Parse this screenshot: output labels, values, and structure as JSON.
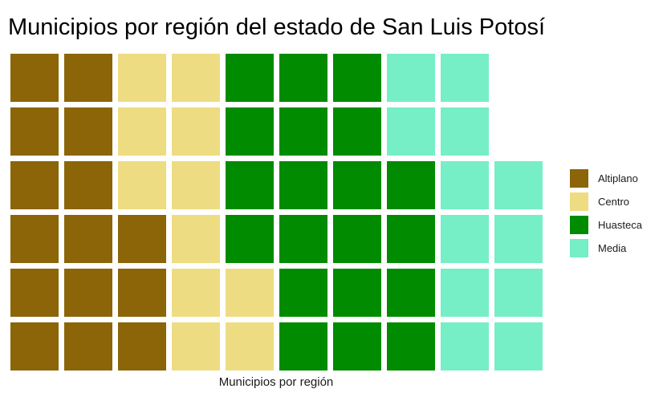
{
  "chart_data": {
    "type": "waffle",
    "title": "Municipios por región del estado de San Luis Potosí",
    "xlabel": "Municipios por región",
    "ylabel": "",
    "rows": 6,
    "categories": [
      "Altiplano",
      "Centro",
      "Huasteca",
      "Media"
    ],
    "values": [
      15,
      11,
      20,
      12
    ],
    "colors": [
      "#8B6508",
      "#EEDC82",
      "#008B00",
      "#76EEC6"
    ],
    "legend_position": "right"
  }
}
